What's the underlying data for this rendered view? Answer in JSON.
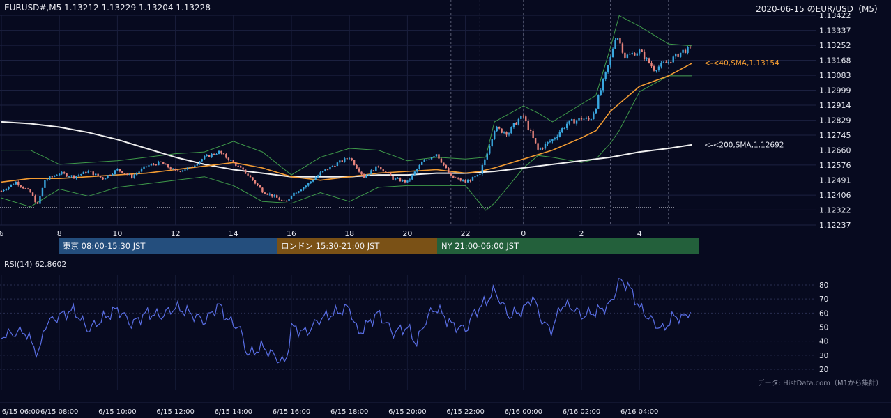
{
  "header": {
    "symbol_ohlc": "EURUSD#,M5 1.13212 1.13229 1.13204 1.13228",
    "title_right": "2020-06-15 のEUR/USD（M5）"
  },
  "colors": {
    "background": "#070a1f",
    "candle_up": "#3aa8e0",
    "candle_down": "#e8847c",
    "sma40": "#f39c33",
    "sma200": "#f0f0f0",
    "bollinger": "#3f9a4a",
    "rsi": "#5a6fe6",
    "tokyo": "#244e7d",
    "london": "#7a5116",
    "ny": "#23603b"
  },
  "chart_data": [
    {
      "type": "candlestick",
      "title": "EUR/USD M5",
      "y_ticks": [
        "1.13422",
        "1.13337",
        "1.13252",
        "1.13168",
        "1.13083",
        "1.12999",
        "1.12914",
        "1.12829",
        "1.12745",
        "1.12660",
        "1.12576",
        "1.12491",
        "1.12406",
        "1.12322",
        "1.12237"
      ],
      "ylim": [
        1.12237,
        1.13422
      ],
      "x_ticks": [
        "6",
        "8",
        "10",
        "12",
        "14",
        "16",
        "18",
        "20",
        "22",
        "0",
        "2",
        "4"
      ],
      "x_tick_hours": [
        6,
        8,
        10,
        12,
        14,
        16,
        18,
        20,
        22,
        24,
        26,
        28
      ],
      "xlim_hours": [
        6,
        29.8
      ],
      "session_dividers_hours": [
        21.5,
        22.5,
        24,
        27,
        29
      ],
      "dotted_level": 1.12336,
      "indicators": {
        "sma40": {
          "label": "<-<40,SMA,1.13154",
          "last": 1.13154
        },
        "sma200": {
          "label": "<-<200,SMA,1.12692",
          "last": 1.12692
        }
      },
      "series": [
        {
          "name": "close",
          "x_hours": [
            6,
            6.5,
            7,
            7.25,
            7.5,
            8,
            8.5,
            9,
            9.5,
            10,
            10.5,
            11,
            11.5,
            12,
            12.5,
            13,
            13.5,
            14,
            14.5,
            15,
            15.5,
            15.8,
            16,
            16.5,
            17,
            17.5,
            18,
            18.5,
            19,
            19.5,
            20,
            20.5,
            21,
            21.5,
            22,
            22.5,
            22.8,
            23,
            23.5,
            23.8,
            24,
            24.5,
            25,
            25.5,
            26,
            26.3,
            26.5,
            27,
            27.2,
            27.5,
            28,
            28.5,
            29,
            29.5,
            29.7
          ],
          "values": [
            1.1243,
            1.1248,
            1.1242,
            1.1235,
            1.1249,
            1.1253,
            1.1251,
            1.1254,
            1.125,
            1.1255,
            1.1251,
            1.1257,
            1.1259,
            1.1254,
            1.1256,
            1.1262,
            1.1265,
            1.1259,
            1.1252,
            1.1243,
            1.1239,
            1.1236,
            1.1241,
            1.1246,
            1.1253,
            1.1258,
            1.1262,
            1.1251,
            1.1257,
            1.125,
            1.1248,
            1.1259,
            1.1264,
            1.1251,
            1.1248,
            1.1252,
            1.1268,
            1.1278,
            1.1276,
            1.1283,
            1.1285,
            1.1266,
            1.1272,
            1.1281,
            1.1284,
            1.1283,
            1.1291,
            1.1318,
            1.1332,
            1.1319,
            1.1322,
            1.1312,
            1.1316,
            1.1322,
            1.1323
          ]
        },
        {
          "name": "sma40",
          "x_hours": [
            6,
            7,
            8,
            9,
            10,
            11,
            12,
            13,
            14,
            15,
            16,
            17,
            18,
            19,
            20,
            21,
            22,
            22.5,
            23,
            24,
            25,
            26,
            26.5,
            27,
            28,
            29,
            29.8
          ],
          "values": [
            1.1248,
            1.125,
            1.125,
            1.1251,
            1.1252,
            1.1253,
            1.1255,
            1.1257,
            1.1259,
            1.1256,
            1.1251,
            1.1249,
            1.1251,
            1.1253,
            1.1254,
            1.1255,
            1.1253,
            1.1254,
            1.1256,
            1.1261,
            1.1266,
            1.1273,
            1.1277,
            1.1288,
            1.1302,
            1.1308,
            1.1315
          ]
        },
        {
          "name": "sma200",
          "x_hours": [
            6,
            7,
            8,
            9,
            10,
            11,
            12,
            13,
            14,
            15,
            16,
            17,
            18,
            19,
            20,
            21,
            22,
            23,
            24,
            25,
            26,
            27,
            28,
            29,
            29.8
          ],
          "values": [
            1.1282,
            1.1281,
            1.1279,
            1.1276,
            1.1272,
            1.1267,
            1.1262,
            1.1258,
            1.1255,
            1.1253,
            1.1251,
            1.1251,
            1.1251,
            1.1252,
            1.1252,
            1.1253,
            1.1253,
            1.1254,
            1.1256,
            1.1258,
            1.126,
            1.1262,
            1.1265,
            1.1267,
            1.1269
          ]
        },
        {
          "name": "bb_upper",
          "x_hours": [
            6,
            7,
            8,
            9,
            10,
            11,
            12,
            13,
            14,
            15,
            16,
            17,
            18,
            19,
            20,
            21,
            22,
            22.7,
            23,
            24,
            24.5,
            25,
            26,
            26.5,
            27,
            27.3,
            28,
            29,
            29.8
          ],
          "values": [
            1.1266,
            1.1266,
            1.1258,
            1.1259,
            1.126,
            1.1262,
            1.1264,
            1.1265,
            1.1271,
            1.1265,
            1.1252,
            1.1262,
            1.1267,
            1.1266,
            1.126,
            1.1262,
            1.1261,
            1.1262,
            1.1282,
            1.1291,
            1.1287,
            1.1282,
            1.1292,
            1.1297,
            1.1324,
            1.1342,
            1.1336,
            1.1326,
            1.1325
          ]
        },
        {
          "name": "bb_lower",
          "x_hours": [
            6,
            7,
            8,
            9,
            10,
            11,
            12,
            13,
            14,
            15,
            16,
            17,
            18,
            19,
            20,
            21,
            22,
            22.7,
            23,
            24,
            24.5,
            25,
            26,
            26.5,
            27,
            27.3,
            28,
            29,
            29.8
          ],
          "values": [
            1.1239,
            1.1234,
            1.1244,
            1.124,
            1.1245,
            1.1247,
            1.1249,
            1.1251,
            1.1246,
            1.1237,
            1.1236,
            1.1242,
            1.1237,
            1.1245,
            1.1246,
            1.1246,
            1.1246,
            1.1232,
            1.1236,
            1.1256,
            1.1263,
            1.1262,
            1.1259,
            1.1261,
            1.127,
            1.1277,
            1.1299,
            1.1308,
            1.1308
          ]
        }
      ]
    },
    {
      "type": "line",
      "title": "RSI(14) 62.8602",
      "y_ticks": [
        "80",
        "70",
        "60",
        "50",
        "40",
        "30",
        "20"
      ],
      "ylim": [
        18,
        90
      ],
      "x_tick_labels": [
        "6/15 06:00",
        "6/15 08:00",
        "6/15 10:00",
        "6/15 12:00",
        "6/15 14:00",
        "6/15 16:00",
        "6/15 18:00",
        "6/15 20:00",
        "6/15 22:00",
        "6/16 00:00",
        "6/16 02:00",
        "6/16 04:00"
      ],
      "series": [
        {
          "name": "RSI(14)",
          "x_hours": [
            6,
            6.8,
            7.3,
            7.5,
            8,
            8.5,
            9,
            9.5,
            10,
            10.5,
            11,
            11.5,
            12,
            12.5,
            13,
            13.5,
            13.8,
            14.2,
            14.5,
            15,
            15.5,
            15.8,
            16,
            16.5,
            17,
            17.5,
            18,
            18.3,
            18.7,
            19,
            19.5,
            20,
            20.3,
            20.7,
            21,
            21.5,
            22,
            22.3,
            22.7,
            23,
            23.5,
            24,
            24.3,
            24.7,
            25,
            25.3,
            25.7,
            26,
            26.5,
            27,
            27.3,
            27.6,
            28,
            28.4,
            28.8,
            29.2,
            29.5,
            29.8
          ],
          "values": [
            44,
            47,
            30,
            52,
            58,
            62,
            48,
            56,
            63,
            52,
            60,
            58,
            64,
            60,
            54,
            66,
            55,
            50,
            30,
            36,
            28,
            24,
            50,
            46,
            56,
            60,
            64,
            45,
            54,
            60,
            46,
            50,
            38,
            58,
            64,
            52,
            48,
            60,
            68,
            76,
            58,
            62,
            72,
            52,
            48,
            66,
            64,
            58,
            61,
            66,
            83,
            80,
            64,
            55,
            48,
            58,
            56,
            62.86
          ]
        }
      ]
    }
  ],
  "sessions": [
    {
      "label": "東京 08:00-15:30 JST"
    },
    {
      "label": "ロンドン 15:30-21:00 JST"
    },
    {
      "label": "NY 21:00-06:00 JST"
    }
  ],
  "credit": "データ: HistData.com（M1から集計）"
}
